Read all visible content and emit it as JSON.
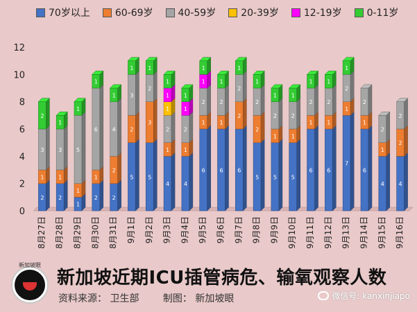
{
  "footer": {
    "title": "新加坡近期ICU插管病危、输氧观察人数",
    "source": "资料来源： 卫生部",
    "made_by": "制图： 新加坡眼",
    "watermark": "微信号: kanxinjiapo",
    "logo_text": "新加坡眼"
  },
  "chart_data": {
    "type": "bar",
    "stacked": true,
    "ylim": [
      0,
      12
    ],
    "yticks": [
      0,
      2,
      4,
      6,
      8,
      10,
      12
    ],
    "categories": [
      "8月27日",
      "8月28日",
      "8月29日",
      "8月30日",
      "8月31日",
      "9月1日",
      "9月2日",
      "9月3日",
      "9月4日",
      "9月5日",
      "9月6日",
      "9月7日",
      "9月8日",
      "9月9日",
      "9月10日",
      "9月11日",
      "9月12日",
      "9月13日",
      "9月14日",
      "9月15日",
      "9月16日"
    ],
    "series": [
      {
        "name": "70岁以上",
        "color": "#4472c4",
        "values": [
          2,
          2,
          1,
          2,
          2,
          5,
          5,
          4,
          4,
          6,
          6,
          6,
          5,
          5,
          5,
          6,
          6,
          7,
          6,
          4,
          4
        ]
      },
      {
        "name": "60-69岁",
        "color": "#ed7d31",
        "values": [
          1,
          1,
          1,
          1,
          2,
          2,
          3,
          1,
          1,
          1,
          1,
          2,
          2,
          1,
          1,
          1,
          1,
          1,
          1,
          1,
          2
        ]
      },
      {
        "name": "40-59岁",
        "color": "#a5a5a5",
        "values": [
          3,
          3,
          5,
          6,
          4,
          3,
          2,
          2,
          2,
          2,
          2,
          2,
          2,
          2,
          2,
          2,
          2,
          2,
          2,
          2,
          2
        ]
      },
      {
        "name": "20-39岁",
        "color": "#ffc000",
        "values": [
          0,
          0,
          0,
          0,
          0,
          0,
          0,
          1,
          0,
          0,
          0,
          0,
          0,
          0,
          0,
          0,
          0,
          0,
          0,
          0,
          0
        ]
      },
      {
        "name": "12-19岁",
        "color": "#ff00ff",
        "values": [
          0,
          0,
          0,
          0,
          0,
          0,
          0,
          1,
          1,
          1,
          0,
          0,
          0,
          0,
          0,
          0,
          0,
          0,
          0,
          0,
          0
        ]
      },
      {
        "name": "0-11岁",
        "color": "#33cc33",
        "values": [
          2,
          1,
          1,
          1,
          1,
          1,
          1,
          1,
          1,
          1,
          1,
          1,
          1,
          1,
          1,
          1,
          1,
          1,
          0,
          0,
          0
        ]
      }
    ],
    "grid": false,
    "legend_position": "top"
  }
}
